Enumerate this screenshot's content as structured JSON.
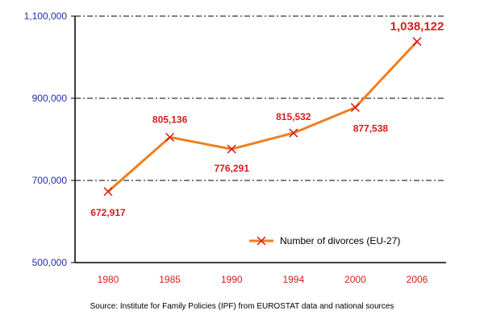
{
  "chart_data": {
    "type": "line",
    "categories": [
      "1980",
      "1985",
      "1990",
      "1994",
      "2000",
      "2006"
    ],
    "series": [
      {
        "name": "Number of divorces (EU-27)",
        "values": [
          672917,
          805136,
          776291,
          815532,
          877538,
          1038122
        ],
        "labels": [
          "672,917",
          "805,136",
          "776,291",
          "815,532",
          "877,538",
          "1,038,122"
        ]
      }
    ],
    "yticks": [
      {
        "value": 500000,
        "label": "500,000"
      },
      {
        "value": 700000,
        "label": "700,000"
      },
      {
        "value": 900000,
        "label": "900,000"
      },
      {
        "value": 1100000,
        "label": "1,100,000"
      }
    ],
    "ylim": [
      500000,
      1100000
    ],
    "grid": "dash-dot horizontal at y ticks",
    "legend": "bottom-right",
    "source": "Source: Institute for Family Policies (IPF) from EUROSTAT data and national sources",
    "colors": {
      "line": "#f07f1f",
      "marker": "#d81b1b",
      "data_label": "#d81b1b",
      "y_tick_label": "#1f2fa8",
      "x_tick_label": "#d81b1b"
    }
  }
}
